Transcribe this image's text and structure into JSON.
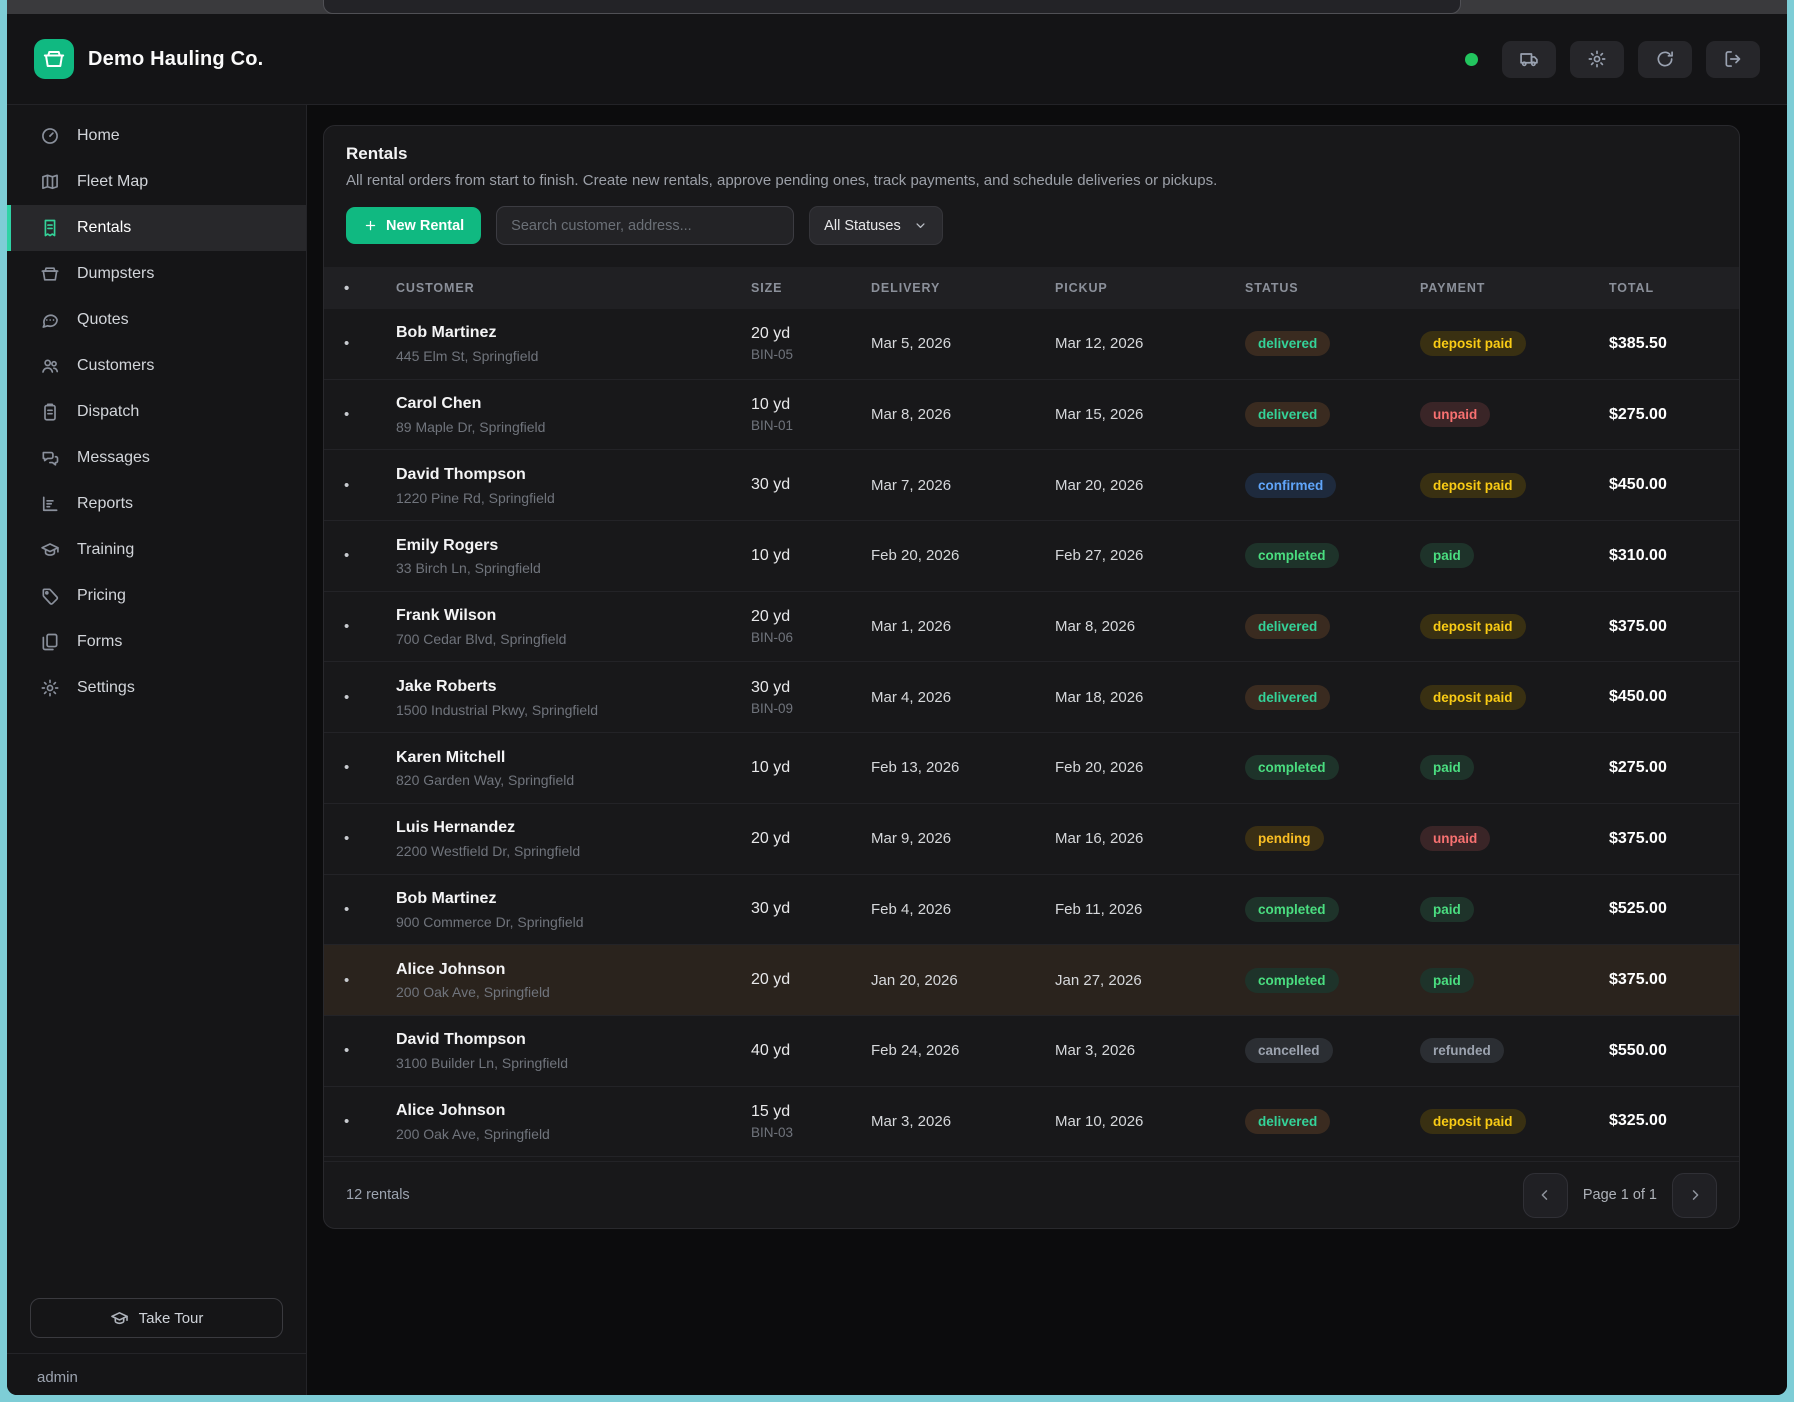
{
  "colors": {
    "frame_border": "#7ecdd6",
    "brand_green": "#10b981",
    "sidebar_active_accent": "#2fd3a5",
    "online_status_dot": "#22c55e"
  },
  "header": {
    "company": "Demo Hauling Co.",
    "actions": [
      {
        "name": "fleet-button",
        "icon": "truck-icon"
      },
      {
        "name": "settings-button",
        "icon": "gear-icon"
      },
      {
        "name": "refresh-button",
        "icon": "refresh-icon"
      },
      {
        "name": "logout-button",
        "icon": "logout-icon"
      }
    ]
  },
  "sidebar": {
    "items": [
      {
        "label": "Home",
        "icon": "gauge-icon",
        "active": false
      },
      {
        "label": "Fleet Map",
        "icon": "map-icon",
        "active": false
      },
      {
        "label": "Rentals",
        "icon": "receipt-icon",
        "active": true
      },
      {
        "label": "Dumpsters",
        "icon": "dumpster-icon",
        "active": false
      },
      {
        "label": "Quotes",
        "icon": "chat-icon",
        "active": false
      },
      {
        "label": "Customers",
        "icon": "users-icon",
        "active": false
      },
      {
        "label": "Dispatch",
        "icon": "clipboard-icon",
        "active": false
      },
      {
        "label": "Messages",
        "icon": "messages-icon",
        "active": false
      },
      {
        "label": "Reports",
        "icon": "chart-icon",
        "active": false
      },
      {
        "label": "Training",
        "icon": "grad-cap-icon",
        "active": false
      },
      {
        "label": "Pricing",
        "icon": "tag-icon",
        "active": false
      },
      {
        "label": "Forms",
        "icon": "forms-icon",
        "active": false
      },
      {
        "label": "Settings",
        "icon": "gear-icon",
        "active": false
      }
    ],
    "take_tour_label": "Take Tour",
    "user": "admin"
  },
  "page": {
    "title": "Rentals",
    "subtitle": "All rental orders from start to finish. Create new rentals, approve pending ones, track payments, and schedule deliveries or pickups.",
    "new_rental_label": "New Rental",
    "search_placeholder": "Search customer, address...",
    "status_filter": "All Statuses"
  },
  "table": {
    "dot_glyph": "•",
    "columns": [
      "CUSTOMER",
      "SIZE",
      "DELIVERY",
      "PICKUP",
      "STATUS",
      "PAYMENT",
      "TOTAL"
    ],
    "rows": [
      {
        "name": "Bob Martinez",
        "address": "445 Elm St, Springfield",
        "size": "20 yd",
        "bin": "BIN-05",
        "delivery": "Mar 5, 2026",
        "pickup": "Mar 12, 2026",
        "status": "delivered",
        "payment": "deposit paid",
        "total": "$385.50",
        "highlighted": false
      },
      {
        "name": "Carol Chen",
        "address": "89 Maple Dr, Springfield",
        "size": "10 yd",
        "bin": "BIN-01",
        "delivery": "Mar 8, 2026",
        "pickup": "Mar 15, 2026",
        "status": "delivered",
        "payment": "unpaid",
        "total": "$275.00",
        "highlighted": false
      },
      {
        "name": "David Thompson",
        "address": "1220 Pine Rd, Springfield",
        "size": "30 yd",
        "bin": "",
        "delivery": "Mar 7, 2026",
        "pickup": "Mar 20, 2026",
        "status": "confirmed",
        "payment": "deposit paid",
        "total": "$450.00",
        "highlighted": false
      },
      {
        "name": "Emily Rogers",
        "address": "33 Birch Ln, Springfield",
        "size": "10 yd",
        "bin": "",
        "delivery": "Feb 20, 2026",
        "pickup": "Feb 27, 2026",
        "status": "completed",
        "payment": "paid",
        "total": "$310.00",
        "highlighted": false
      },
      {
        "name": "Frank Wilson",
        "address": "700 Cedar Blvd, Springfield",
        "size": "20 yd",
        "bin": "BIN-06",
        "delivery": "Mar 1, 2026",
        "pickup": "Mar 8, 2026",
        "status": "delivered",
        "payment": "deposit paid",
        "total": "$375.00",
        "highlighted": false
      },
      {
        "name": "Jake Roberts",
        "address": "1500 Industrial Pkwy, Springfield",
        "size": "30 yd",
        "bin": "BIN-09",
        "delivery": "Mar 4, 2026",
        "pickup": "Mar 18, 2026",
        "status": "delivered",
        "payment": "deposit paid",
        "total": "$450.00",
        "highlighted": false
      },
      {
        "name": "Karen Mitchell",
        "address": "820 Garden Way, Springfield",
        "size": "10 yd",
        "bin": "",
        "delivery": "Feb 13, 2026",
        "pickup": "Feb 20, 2026",
        "status": "completed",
        "payment": "paid",
        "total": "$275.00",
        "highlighted": false
      },
      {
        "name": "Luis Hernandez",
        "address": "2200 Westfield Dr, Springfield",
        "size": "20 yd",
        "bin": "",
        "delivery": "Mar 9, 2026",
        "pickup": "Mar 16, 2026",
        "status": "pending",
        "payment": "unpaid",
        "total": "$375.00",
        "highlighted": false
      },
      {
        "name": "Bob Martinez",
        "address": "900 Commerce Dr, Springfield",
        "size": "30 yd",
        "bin": "",
        "delivery": "Feb 4, 2026",
        "pickup": "Feb 11, 2026",
        "status": "completed",
        "payment": "paid",
        "total": "$525.00",
        "highlighted": false
      },
      {
        "name": "Alice Johnson",
        "address": "200 Oak Ave, Springfield",
        "size": "20 yd",
        "bin": "",
        "delivery": "Jan 20, 2026",
        "pickup": "Jan 27, 2026",
        "status": "completed",
        "payment": "paid",
        "total": "$375.00",
        "highlighted": true
      },
      {
        "name": "David Thompson",
        "address": "3100 Builder Ln, Springfield",
        "size": "40 yd",
        "bin": "",
        "delivery": "Feb 24, 2026",
        "pickup": "Mar 3, 2026",
        "status": "cancelled",
        "payment": "refunded",
        "total": "$550.00",
        "highlighted": false
      },
      {
        "name": "Alice Johnson",
        "address": "200 Oak Ave, Springfield",
        "size": "15 yd",
        "bin": "BIN-03",
        "delivery": "Mar 3, 2026",
        "pickup": "Mar 10, 2026",
        "status": "delivered",
        "payment": "deposit paid",
        "total": "$325.00",
        "highlighted": false
      }
    ]
  },
  "badge_styles": {
    "delivered": {
      "fg": "#34d399",
      "bg": "#3a2b20"
    },
    "confirmed": {
      "fg": "#60a5fa",
      "bg": "#1e2a3d"
    },
    "completed": {
      "fg": "#4ade80",
      "bg": "#1e332a"
    },
    "pending": {
      "fg": "#fbbf24",
      "bg": "#3a2f14"
    },
    "cancelled": {
      "fg": "#9ca3af",
      "bg": "#2b2e33"
    },
    "deposit paid": {
      "fg": "#facc15",
      "bg": "#393012"
    },
    "unpaid": {
      "fg": "#f87171",
      "bg": "#3a2527"
    },
    "paid": {
      "fg": "#4ade80",
      "bg": "#1e332a"
    },
    "refunded": {
      "fg": "#9ca3af",
      "bg": "#2b2e33"
    }
  },
  "footer": {
    "count": "12 rentals",
    "page": "Page 1 of 1"
  }
}
